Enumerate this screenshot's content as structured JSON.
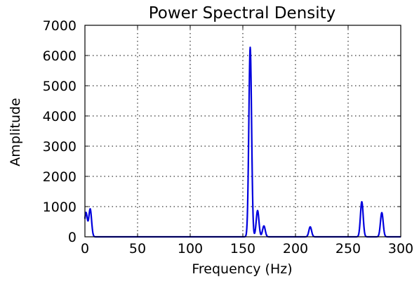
{
  "chart_data": {
    "type": "line",
    "title": "Power Spectral Density",
    "xlabel": "Frequency (Hz)",
    "ylabel": "Amplitude",
    "xlim": [
      0,
      300
    ],
    "ylim": [
      0,
      7000
    ],
    "xticks": [
      0,
      50,
      100,
      150,
      200,
      250,
      300
    ],
    "yticks": [
      0,
      1000,
      2000,
      3000,
      4000,
      5000,
      6000,
      7000
    ],
    "grid": true,
    "line_color": "#0000dd",
    "series": [
      {
        "peaks": [
          {
            "frequency": 1,
            "amplitude": 800
          },
          {
            "frequency": 5,
            "amplitude": 920
          },
          {
            "frequency": 157,
            "amplitude": 6270
          },
          {
            "frequency": 164,
            "amplitude": 870
          },
          {
            "frequency": 170,
            "amplitude": 360
          },
          {
            "frequency": 214,
            "amplitude": 330
          },
          {
            "frequency": 263,
            "amplitude": 1160
          },
          {
            "frequency": 282,
            "amplitude": 800
          }
        ],
        "baseline": 0
      }
    ]
  }
}
